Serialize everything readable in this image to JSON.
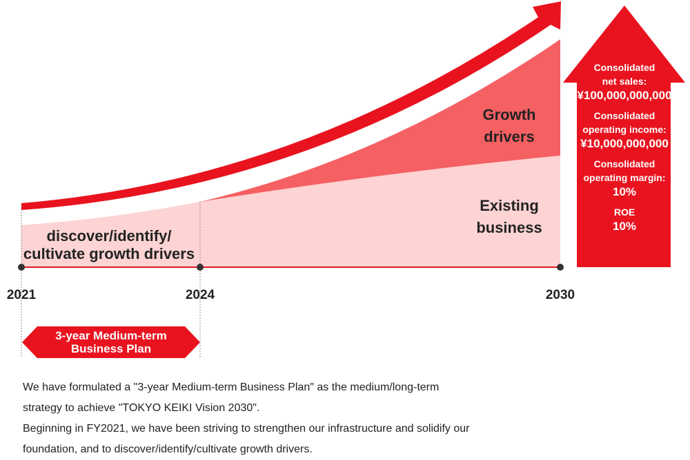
{
  "timeline": {
    "years": [
      "2021",
      "2024",
      "2030"
    ]
  },
  "labels": {
    "growth_drivers": [
      "Growth",
      "drivers"
    ],
    "existing_business": [
      "Existing",
      "business"
    ],
    "discover": [
      "discover/identify/",
      "cultivate growth drivers"
    ]
  },
  "targets": [
    {
      "label": "Consolidated\nnet sales:",
      "value": "¥100,000,000,000"
    },
    {
      "label": "Consolidated\noperating income:",
      "value": "¥10,000,000,000"
    },
    {
      "label": "Consolidated\noperating margin:",
      "value": "10%"
    },
    {
      "label": "ROE",
      "value": "10%"
    }
  ],
  "plan_badge": "3-year Medium-term\nBusiness Plan",
  "description": {
    "lines": [
      "We have formulated a \"3-year Medium-term Business Plan\" as the medium/long-term",
      "strategy to achieve \"TOKYO KEIKI Vision 2030\".",
      "Beginning in FY2021, we have been striving to strengthen our infrastructure and solidify our",
      "foundation, and to discover/identify/cultivate growth drivers."
    ]
  },
  "colors": {
    "accent": "#e8131f",
    "growth_fill": "#f56063",
    "existing_fill": "#fdd3d3",
    "axis": "#e0191f"
  }
}
